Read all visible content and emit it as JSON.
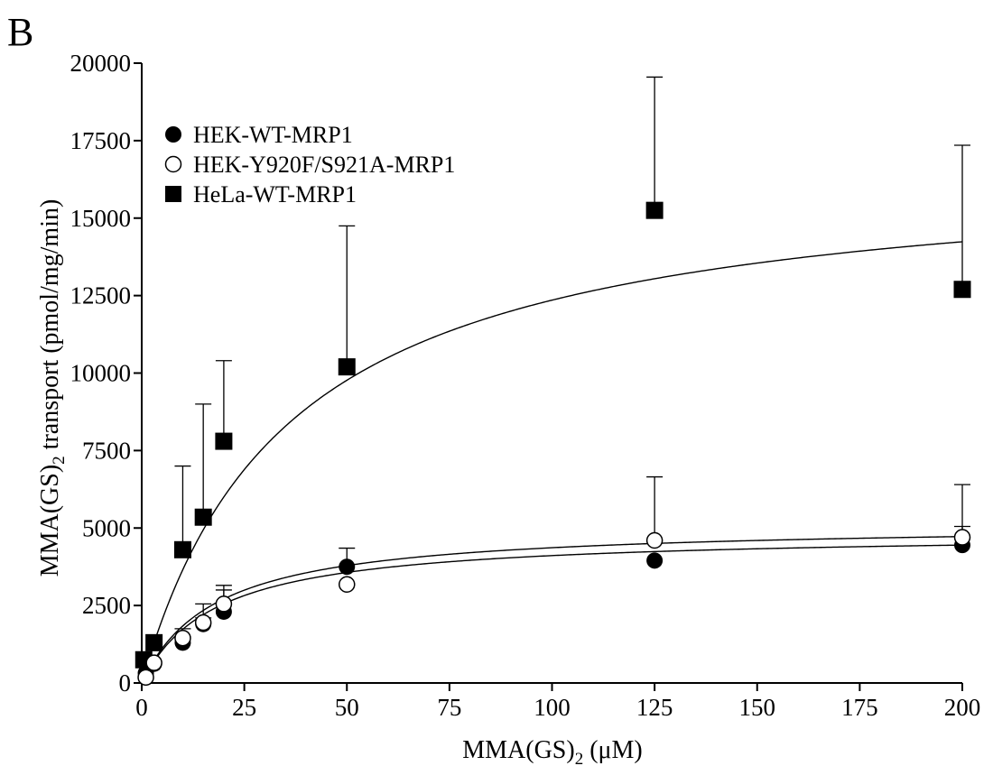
{
  "panel_label": "B",
  "chart_data": {
    "type": "scatter",
    "xlabel": {
      "main": "MMA(GS)",
      "sub": "2",
      "unit": " (μM)"
    },
    "ylabel": {
      "main": "MMA(GS)",
      "sub": "2",
      "rest": " transport (pmol/mg/min)"
    },
    "xlim": [
      0,
      200
    ],
    "ylim": [
      0,
      20000
    ],
    "xticks": [
      0,
      25,
      50,
      75,
      100,
      125,
      150,
      175,
      200
    ],
    "yticks": [
      0,
      2500,
      5000,
      7500,
      10000,
      12500,
      15000,
      17500,
      20000
    ],
    "xtick_labels": [
      "0",
      "25",
      "50",
      "75",
      "100",
      "125",
      "150",
      "175",
      "200"
    ],
    "ytick_labels": [
      "0",
      "2500",
      "5000",
      "7500",
      "10000",
      "12500",
      "15000",
      "17500",
      "20000"
    ],
    "grid": false,
    "legend_position": "top-left",
    "series": [
      {
        "name": "HEK-WT-MRP1",
        "marker": "filled-circle",
        "points": [
          {
            "x": 1,
            "y": 320,
            "err": 0
          },
          {
            "x": 3,
            "y": 620,
            "err": 0
          },
          {
            "x": 10,
            "y": 1300,
            "err": 150
          },
          {
            "x": 15,
            "y": 1900,
            "err": 200
          },
          {
            "x": 20,
            "y": 2300,
            "err": 700
          },
          {
            "x": 50,
            "y": 3750,
            "err": 600
          },
          {
            "x": 125,
            "y": 3950,
            "err": 0
          },
          {
            "x": 200,
            "y": 4450,
            "err": 600
          }
        ],
        "fit": {
          "vmax": 4850,
          "km": 18
        }
      },
      {
        "name": "HEK-Y920F/S921A-MRP1",
        "marker": "open-circle",
        "points": [
          {
            "x": 1,
            "y": 180,
            "err": 0
          },
          {
            "x": 3,
            "y": 650,
            "err": 0
          },
          {
            "x": 10,
            "y": 1450,
            "err": 300
          },
          {
            "x": 15,
            "y": 1950,
            "err": 600
          },
          {
            "x": 20,
            "y": 2550,
            "err": 600
          },
          {
            "x": 50,
            "y": 3180,
            "err": 0
          },
          {
            "x": 125,
            "y": 4600,
            "err": 2050
          },
          {
            "x": 200,
            "y": 4700,
            "err": 1700
          }
        ],
        "fit": {
          "vmax": 5150,
          "km": 18
        }
      },
      {
        "name": "HeLa-WT-MRP1",
        "marker": "filled-square",
        "points": [
          {
            "x": 0.5,
            "y": 750,
            "err": 0
          },
          {
            "x": 3,
            "y": 1300,
            "err": 0
          },
          {
            "x": 10,
            "y": 4300,
            "err": 2700
          },
          {
            "x": 15,
            "y": 5350,
            "err": 3650
          },
          {
            "x": 20,
            "y": 7800,
            "err": 2600
          },
          {
            "x": 50,
            "y": 10200,
            "err": 4550
          },
          {
            "x": 125,
            "y": 15250,
            "err": 4300
          },
          {
            "x": 200,
            "y": 12700,
            "err": 4650
          }
        ],
        "fit": {
          "vmax": 16800,
          "km": 36
        }
      }
    ]
  }
}
